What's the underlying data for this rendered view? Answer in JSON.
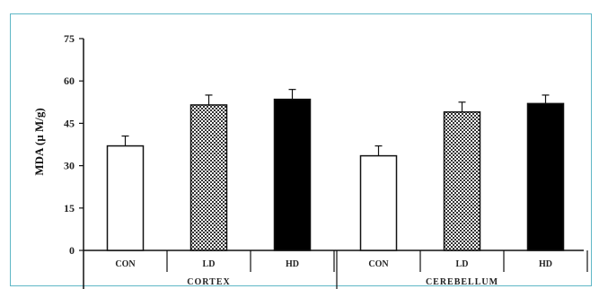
{
  "chart_data": {
    "type": "bar",
    "ylabel": "MDA (µ M/g)",
    "ylim": [
      0,
      75
    ],
    "yticks": [
      0,
      15,
      30,
      45,
      60,
      75
    ],
    "groups": [
      {
        "label": "CORTEX",
        "bars": [
          {
            "category": "CON",
            "value": 37,
            "error": 3.5,
            "fill": "white"
          },
          {
            "category": "LD",
            "value": 51.5,
            "error": 3.5,
            "fill": "checker"
          },
          {
            "category": "HD",
            "value": 53.5,
            "error": 3.5,
            "fill": "black"
          }
        ]
      },
      {
        "label": "CEREBELLUM",
        "bars": [
          {
            "category": "CON",
            "value": 33.5,
            "error": 3.5,
            "fill": "white"
          },
          {
            "category": "LD",
            "value": 49,
            "error": 3.5,
            "fill": "checker"
          },
          {
            "category": "HD",
            "value": 52,
            "error": 3,
            "fill": "black"
          }
        ]
      }
    ],
    "grid": false
  }
}
